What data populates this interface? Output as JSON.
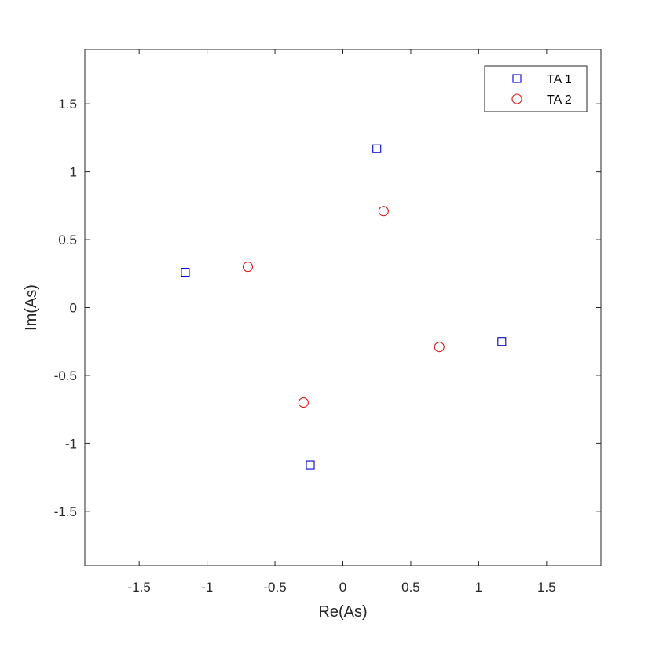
{
  "chart_data": {
    "type": "scatter",
    "xlabel": "Re(As)",
    "ylabel": "Im(As)",
    "xlim": [
      -1.9,
      1.9
    ],
    "ylim": [
      -1.9,
      1.9
    ],
    "xticks": [
      -1.5,
      -1,
      -0.5,
      0,
      0.5,
      1,
      1.5
    ],
    "yticks": [
      -1.5,
      -1,
      -0.5,
      0,
      0.5,
      1,
      1.5
    ],
    "xtick_labels": [
      "-1.5",
      "-1",
      "-0.5",
      "0",
      "0.5",
      "1",
      "1.5"
    ],
    "ytick_labels": [
      "-1.5",
      "-1",
      "-0.5",
      "0",
      "0.5",
      "1",
      "1.5"
    ],
    "grid": false,
    "legend_position": "top-right",
    "series": [
      {
        "name": "TA 1",
        "marker": "square",
        "color": "#0000cc",
        "x": [
          0.25,
          -1.16,
          1.17,
          -0.24
        ],
        "y": [
          1.17,
          0.26,
          -0.25,
          -1.16
        ]
      },
      {
        "name": "TA 2",
        "marker": "circle",
        "color": "#e01010",
        "x": [
          0.3,
          -0.7,
          0.71,
          -0.29
        ],
        "y": [
          0.71,
          0.3,
          -0.29,
          -0.7
        ]
      }
    ]
  }
}
